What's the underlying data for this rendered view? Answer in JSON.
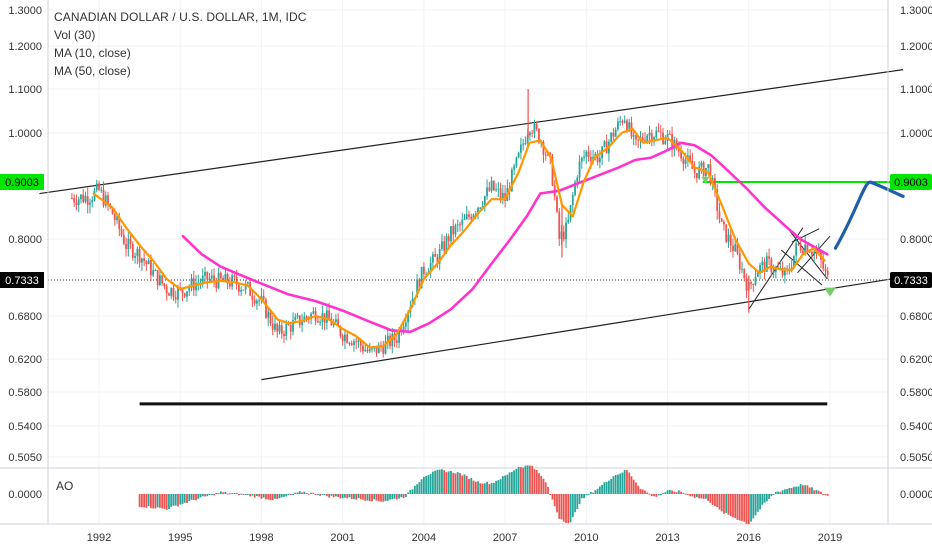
{
  "chart_data": {
    "type": "candlestick",
    "title": "CANADIAN DOLLAR / U.S. DOLLAR, 1M, IDC",
    "indicators": [
      "Vol (30)",
      "MA (10, close)",
      "MA (50, close)"
    ],
    "subpane_label": "AO",
    "yaxis_ticks": [
      "1.3000",
      "1.2000",
      "1.1000",
      "1.0000",
      "0.8000",
      "0.6800",
      "0.6200",
      "0.5800",
      "0.5400",
      "0.5050"
    ],
    "price_labels": [
      {
        "value": "0.9003",
        "color": "#00e600"
      },
      {
        "value": "0.7333",
        "color": "#000000"
      }
    ],
    "ao_ticks": [
      "0.0000"
    ],
    "xaxis_ticks": [
      "1992",
      "1995",
      "1998",
      "2001",
      "2004",
      "2007",
      "2010",
      "2013",
      "2016",
      "2019"
    ],
    "ylim": [
      0.5,
      1.3
    ],
    "log_scale": true,
    "colors": {
      "up": "#26a69a",
      "down": "#ef5350",
      "ma_fast": "#ff9800",
      "ma_slow": "#ff33cc",
      "level_green": "#00e600",
      "forecast": "#1f5fa8"
    },
    "price_path": [
      [
        1991.0,
        0.872
      ],
      [
        1991.6,
        0.874
      ],
      [
        1992.0,
        0.885
      ],
      [
        1992.5,
        0.845
      ],
      [
        1993.0,
        0.79
      ],
      [
        1993.5,
        0.775
      ],
      [
        1994.0,
        0.745
      ],
      [
        1994.5,
        0.72
      ],
      [
        1995.0,
        0.715
      ],
      [
        1995.5,
        0.728
      ],
      [
        1996.0,
        0.735
      ],
      [
        1996.5,
        0.732
      ],
      [
        1997.0,
        0.73
      ],
      [
        1997.5,
        0.72
      ],
      [
        1998.0,
        0.7
      ],
      [
        1998.6,
        0.655
      ],
      [
        1999.0,
        0.665
      ],
      [
        1999.5,
        0.675
      ],
      [
        2000.0,
        0.685
      ],
      [
        2000.5,
        0.675
      ],
      [
        2001.0,
        0.655
      ],
      [
        2001.5,
        0.645
      ],
      [
        2002.0,
        0.628
      ],
      [
        2002.5,
        0.638
      ],
      [
        2003.0,
        0.65
      ],
      [
        2003.5,
        0.7
      ],
      [
        2004.0,
        0.75
      ],
      [
        2004.5,
        0.77
      ],
      [
        2005.0,
        0.81
      ],
      [
        2005.5,
        0.83
      ],
      [
        2006.0,
        0.86
      ],
      [
        2006.5,
        0.89
      ],
      [
        2007.0,
        0.87
      ],
      [
        2007.5,
        0.95
      ],
      [
        2007.9,
        1.02
      ],
      [
        2008.3,
        0.99
      ],
      [
        2008.7,
        0.93
      ],
      [
        2009.0,
        0.8
      ],
      [
        2009.3,
        0.82
      ],
      [
        2009.7,
        0.93
      ],
      [
        2010.0,
        0.96
      ],
      [
        2010.5,
        0.95
      ],
      [
        2011.0,
        1.0
      ],
      [
        2011.4,
        1.04
      ],
      [
        2011.8,
        0.97
      ],
      [
        2012.2,
        1.0
      ],
      [
        2012.6,
        1.0
      ],
      [
        2013.0,
        0.99
      ],
      [
        2013.5,
        0.96
      ],
      [
        2014.0,
        0.92
      ],
      [
        2014.5,
        0.93
      ],
      [
        2015.0,
        0.82
      ],
      [
        2015.5,
        0.78
      ],
      [
        2016.0,
        0.72
      ],
      [
        2016.3,
        0.75
      ],
      [
        2016.7,
        0.76
      ],
      [
        2017.0,
        0.75
      ],
      [
        2017.4,
        0.74
      ],
      [
        2017.8,
        0.79
      ],
      [
        2018.2,
        0.79
      ],
      [
        2018.6,
        0.77
      ],
      [
        2018.9,
        0.735
      ]
    ],
    "ma10_path": [
      [
        1991.8,
        0.88
      ],
      [
        1992.5,
        0.855
      ],
      [
        1993.0,
        0.82
      ],
      [
        1993.5,
        0.79
      ],
      [
        1994.0,
        0.765
      ],
      [
        1994.5,
        0.735
      ],
      [
        1995.0,
        0.72
      ],
      [
        1995.5,
        0.725
      ],
      [
        1996.0,
        0.73
      ],
      [
        1996.5,
        0.732
      ],
      [
        1997.0,
        0.73
      ],
      [
        1997.5,
        0.725
      ],
      [
        1998.0,
        0.705
      ],
      [
        1998.6,
        0.675
      ],
      [
        1999.0,
        0.67
      ],
      [
        1999.5,
        0.673
      ],
      [
        2000.0,
        0.68
      ],
      [
        2000.5,
        0.675
      ],
      [
        2001.0,
        0.662
      ],
      [
        2001.5,
        0.652
      ],
      [
        2002.0,
        0.636
      ],
      [
        2002.5,
        0.638
      ],
      [
        2003.0,
        0.655
      ],
      [
        2003.5,
        0.69
      ],
      [
        2004.0,
        0.735
      ],
      [
        2004.5,
        0.76
      ],
      [
        2005.0,
        0.79
      ],
      [
        2005.5,
        0.815
      ],
      [
        2006.0,
        0.845
      ],
      [
        2006.5,
        0.87
      ],
      [
        2007.0,
        0.87
      ],
      [
        2007.5,
        0.92
      ],
      [
        2007.9,
        0.98
      ],
      [
        2008.3,
        0.985
      ],
      [
        2008.7,
        0.95
      ],
      [
        2009.1,
        0.86
      ],
      [
        2009.5,
        0.84
      ],
      [
        2009.9,
        0.9
      ],
      [
        2010.3,
        0.95
      ],
      [
        2010.8,
        0.97
      ],
      [
        2011.3,
        1.0
      ],
      [
        2011.7,
        1.01
      ],
      [
        2012.1,
        0.98
      ],
      [
        2012.5,
        0.985
      ],
      [
        2013.0,
        0.99
      ],
      [
        2013.5,
        0.965
      ],
      [
        2014.0,
        0.93
      ],
      [
        2014.5,
        0.92
      ],
      [
        2015.0,
        0.86
      ],
      [
        2015.5,
        0.8
      ],
      [
        2016.0,
        0.76
      ],
      [
        2016.4,
        0.745
      ],
      [
        2016.8,
        0.755
      ],
      [
        2017.2,
        0.75
      ],
      [
        2017.6,
        0.75
      ],
      [
        2018.0,
        0.775
      ],
      [
        2018.4,
        0.785
      ],
      [
        2018.8,
        0.765
      ]
    ],
    "ma50_path": [
      [
        1995.1,
        0.805
      ],
      [
        1995.8,
        0.775
      ],
      [
        1996.5,
        0.755
      ],
      [
        1997.2,
        0.742
      ],
      [
        1998.0,
        0.728
      ],
      [
        1999.0,
        0.712
      ],
      [
        2000.0,
        0.702
      ],
      [
        2001.0,
        0.688
      ],
      [
        2002.0,
        0.672
      ],
      [
        2002.8,
        0.66
      ],
      [
        2003.5,
        0.658
      ],
      [
        2004.2,
        0.67
      ],
      [
        2005.0,
        0.69
      ],
      [
        2005.8,
        0.72
      ],
      [
        2006.5,
        0.76
      ],
      [
        2007.2,
        0.8
      ],
      [
        2007.8,
        0.84
      ],
      [
        2008.3,
        0.88
      ],
      [
        2009.0,
        0.885
      ],
      [
        2009.8,
        0.9
      ],
      [
        2010.5,
        0.915
      ],
      [
        2011.2,
        0.93
      ],
      [
        2011.8,
        0.945
      ],
      [
        2012.4,
        0.95
      ],
      [
        2013.0,
        0.965
      ],
      [
        2013.5,
        0.98
      ],
      [
        2014.0,
        0.975
      ],
      [
        2014.6,
        0.955
      ],
      [
        2015.2,
        0.925
      ],
      [
        2015.9,
        0.89
      ],
      [
        2016.6,
        0.855
      ],
      [
        2017.3,
        0.825
      ],
      [
        2017.9,
        0.8
      ],
      [
        2018.5,
        0.785
      ],
      [
        2018.9,
        0.775
      ]
    ],
    "ao_path": [
      [
        1993.5,
        -0.02
      ],
      [
        1994.5,
        -0.025
      ],
      [
        1995.5,
        -0.01
      ],
      [
        1996.5,
        0.003
      ],
      [
        1997.5,
        -0.002
      ],
      [
        1998.5,
        -0.01
      ],
      [
        1999.5,
        0.004
      ],
      [
        2000.5,
        -0.004
      ],
      [
        2001.5,
        -0.008
      ],
      [
        2002.5,
        -0.012
      ],
      [
        2003.3,
        -0.005
      ],
      [
        2004.0,
        0.03
      ],
      [
        2004.6,
        0.04
      ],
      [
        2005.3,
        0.035
      ],
      [
        2006.0,
        0.02
      ],
      [
        2006.5,
        0.018
      ],
      [
        2007.0,
        0.03
      ],
      [
        2007.5,
        0.045
      ],
      [
        2008.0,
        0.048
      ],
      [
        2008.5,
        0.02
      ],
      [
        2009.0,
        -0.04
      ],
      [
        2009.4,
        -0.05
      ],
      [
        2009.8,
        -0.01
      ],
      [
        2010.5,
        0.012
      ],
      [
        2011.0,
        0.03
      ],
      [
        2011.5,
        0.04
      ],
      [
        2012.0,
        0.01
      ],
      [
        2012.5,
        -0.005
      ],
      [
        2013.0,
        0.005
      ],
      [
        2013.5,
        0.004
      ],
      [
        2014.0,
        -0.005
      ],
      [
        2014.5,
        -0.01
      ],
      [
        2015.0,
        -0.03
      ],
      [
        2015.5,
        -0.04
      ],
      [
        2016.0,
        -0.05
      ],
      [
        2016.5,
        -0.02
      ],
      [
        2017.0,
        0.003
      ],
      [
        2017.5,
        0.01
      ],
      [
        2018.0,
        0.016
      ],
      [
        2018.5,
        0.006
      ],
      [
        2018.9,
        -0.003
      ]
    ],
    "drawings": {
      "upper_channel": [
        [
          1989.8,
          0.88
        ],
        [
          2021.7,
          1.145
        ]
      ],
      "lower_channel": [
        [
          1998.0,
          0.595
        ],
        [
          2021.7,
          0.738
        ]
      ],
      "support_line": [
        [
          1993.5,
          0.566
        ],
        [
          2018.9,
          0.566
        ]
      ],
      "green_level": [
        2014.3,
        2021.7,
        0.9003
      ],
      "forecast_curve": [
        [
          2019.2,
          0.785
        ],
        [
          2020.0,
          0.85
        ],
        [
          2020.5,
          0.9
        ],
        [
          2021.0,
          0.895
        ],
        [
          2021.7,
          0.875
        ]
      ]
    }
  }
}
